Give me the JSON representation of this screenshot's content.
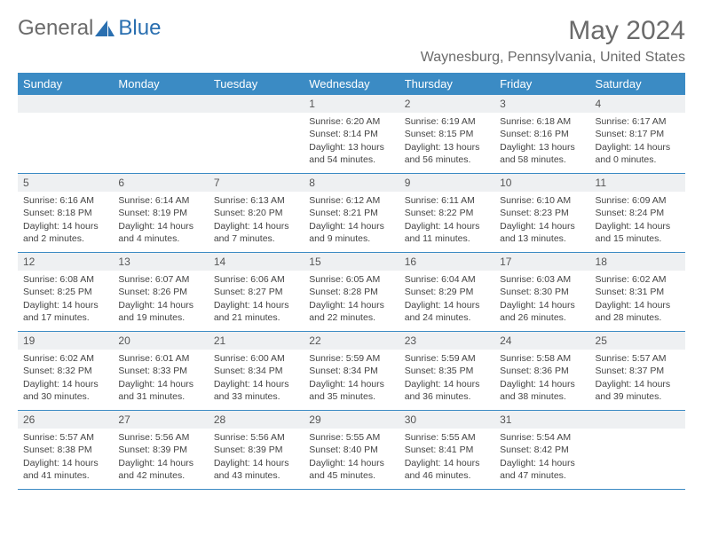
{
  "logo": {
    "text1": "General",
    "text2": "Blue"
  },
  "title": "May 2024",
  "location": "Waynesburg, Pennsylvania, United States",
  "colors": {
    "header_bg": "#3b8bc4",
    "header_text": "#ffffff",
    "cell_bar_bg": "#eef0f2",
    "border": "#3b8bc4",
    "logo_gray": "#6b6b6b",
    "logo_blue": "#2a6fb0"
  },
  "dayNames": [
    "Sunday",
    "Monday",
    "Tuesday",
    "Wednesday",
    "Thursday",
    "Friday",
    "Saturday"
  ],
  "weeks": [
    [
      {
        "n": "",
        "sr": "",
        "ss": "",
        "dl1": "",
        "dl2": ""
      },
      {
        "n": "",
        "sr": "",
        "ss": "",
        "dl1": "",
        "dl2": ""
      },
      {
        "n": "",
        "sr": "",
        "ss": "",
        "dl1": "",
        "dl2": ""
      },
      {
        "n": "1",
        "sr": "Sunrise: 6:20 AM",
        "ss": "Sunset: 8:14 PM",
        "dl1": "Daylight: 13 hours",
        "dl2": "and 54 minutes."
      },
      {
        "n": "2",
        "sr": "Sunrise: 6:19 AM",
        "ss": "Sunset: 8:15 PM",
        "dl1": "Daylight: 13 hours",
        "dl2": "and 56 minutes."
      },
      {
        "n": "3",
        "sr": "Sunrise: 6:18 AM",
        "ss": "Sunset: 8:16 PM",
        "dl1": "Daylight: 13 hours",
        "dl2": "and 58 minutes."
      },
      {
        "n": "4",
        "sr": "Sunrise: 6:17 AM",
        "ss": "Sunset: 8:17 PM",
        "dl1": "Daylight: 14 hours",
        "dl2": "and 0 minutes."
      }
    ],
    [
      {
        "n": "5",
        "sr": "Sunrise: 6:16 AM",
        "ss": "Sunset: 8:18 PM",
        "dl1": "Daylight: 14 hours",
        "dl2": "and 2 minutes."
      },
      {
        "n": "6",
        "sr": "Sunrise: 6:14 AM",
        "ss": "Sunset: 8:19 PM",
        "dl1": "Daylight: 14 hours",
        "dl2": "and 4 minutes."
      },
      {
        "n": "7",
        "sr": "Sunrise: 6:13 AM",
        "ss": "Sunset: 8:20 PM",
        "dl1": "Daylight: 14 hours",
        "dl2": "and 7 minutes."
      },
      {
        "n": "8",
        "sr": "Sunrise: 6:12 AM",
        "ss": "Sunset: 8:21 PM",
        "dl1": "Daylight: 14 hours",
        "dl2": "and 9 minutes."
      },
      {
        "n": "9",
        "sr": "Sunrise: 6:11 AM",
        "ss": "Sunset: 8:22 PM",
        "dl1": "Daylight: 14 hours",
        "dl2": "and 11 minutes."
      },
      {
        "n": "10",
        "sr": "Sunrise: 6:10 AM",
        "ss": "Sunset: 8:23 PM",
        "dl1": "Daylight: 14 hours",
        "dl2": "and 13 minutes."
      },
      {
        "n": "11",
        "sr": "Sunrise: 6:09 AM",
        "ss": "Sunset: 8:24 PM",
        "dl1": "Daylight: 14 hours",
        "dl2": "and 15 minutes."
      }
    ],
    [
      {
        "n": "12",
        "sr": "Sunrise: 6:08 AM",
        "ss": "Sunset: 8:25 PM",
        "dl1": "Daylight: 14 hours",
        "dl2": "and 17 minutes."
      },
      {
        "n": "13",
        "sr": "Sunrise: 6:07 AM",
        "ss": "Sunset: 8:26 PM",
        "dl1": "Daylight: 14 hours",
        "dl2": "and 19 minutes."
      },
      {
        "n": "14",
        "sr": "Sunrise: 6:06 AM",
        "ss": "Sunset: 8:27 PM",
        "dl1": "Daylight: 14 hours",
        "dl2": "and 21 minutes."
      },
      {
        "n": "15",
        "sr": "Sunrise: 6:05 AM",
        "ss": "Sunset: 8:28 PM",
        "dl1": "Daylight: 14 hours",
        "dl2": "and 22 minutes."
      },
      {
        "n": "16",
        "sr": "Sunrise: 6:04 AM",
        "ss": "Sunset: 8:29 PM",
        "dl1": "Daylight: 14 hours",
        "dl2": "and 24 minutes."
      },
      {
        "n": "17",
        "sr": "Sunrise: 6:03 AM",
        "ss": "Sunset: 8:30 PM",
        "dl1": "Daylight: 14 hours",
        "dl2": "and 26 minutes."
      },
      {
        "n": "18",
        "sr": "Sunrise: 6:02 AM",
        "ss": "Sunset: 8:31 PM",
        "dl1": "Daylight: 14 hours",
        "dl2": "and 28 minutes."
      }
    ],
    [
      {
        "n": "19",
        "sr": "Sunrise: 6:02 AM",
        "ss": "Sunset: 8:32 PM",
        "dl1": "Daylight: 14 hours",
        "dl2": "and 30 minutes."
      },
      {
        "n": "20",
        "sr": "Sunrise: 6:01 AM",
        "ss": "Sunset: 8:33 PM",
        "dl1": "Daylight: 14 hours",
        "dl2": "and 31 minutes."
      },
      {
        "n": "21",
        "sr": "Sunrise: 6:00 AM",
        "ss": "Sunset: 8:34 PM",
        "dl1": "Daylight: 14 hours",
        "dl2": "and 33 minutes."
      },
      {
        "n": "22",
        "sr": "Sunrise: 5:59 AM",
        "ss": "Sunset: 8:34 PM",
        "dl1": "Daylight: 14 hours",
        "dl2": "and 35 minutes."
      },
      {
        "n": "23",
        "sr": "Sunrise: 5:59 AM",
        "ss": "Sunset: 8:35 PM",
        "dl1": "Daylight: 14 hours",
        "dl2": "and 36 minutes."
      },
      {
        "n": "24",
        "sr": "Sunrise: 5:58 AM",
        "ss": "Sunset: 8:36 PM",
        "dl1": "Daylight: 14 hours",
        "dl2": "and 38 minutes."
      },
      {
        "n": "25",
        "sr": "Sunrise: 5:57 AM",
        "ss": "Sunset: 8:37 PM",
        "dl1": "Daylight: 14 hours",
        "dl2": "and 39 minutes."
      }
    ],
    [
      {
        "n": "26",
        "sr": "Sunrise: 5:57 AM",
        "ss": "Sunset: 8:38 PM",
        "dl1": "Daylight: 14 hours",
        "dl2": "and 41 minutes."
      },
      {
        "n": "27",
        "sr": "Sunrise: 5:56 AM",
        "ss": "Sunset: 8:39 PM",
        "dl1": "Daylight: 14 hours",
        "dl2": "and 42 minutes."
      },
      {
        "n": "28",
        "sr": "Sunrise: 5:56 AM",
        "ss": "Sunset: 8:39 PM",
        "dl1": "Daylight: 14 hours",
        "dl2": "and 43 minutes."
      },
      {
        "n": "29",
        "sr": "Sunrise: 5:55 AM",
        "ss": "Sunset: 8:40 PM",
        "dl1": "Daylight: 14 hours",
        "dl2": "and 45 minutes."
      },
      {
        "n": "30",
        "sr": "Sunrise: 5:55 AM",
        "ss": "Sunset: 8:41 PM",
        "dl1": "Daylight: 14 hours",
        "dl2": "and 46 minutes."
      },
      {
        "n": "31",
        "sr": "Sunrise: 5:54 AM",
        "ss": "Sunset: 8:42 PM",
        "dl1": "Daylight: 14 hours",
        "dl2": "and 47 minutes."
      },
      {
        "n": "",
        "sr": "",
        "ss": "",
        "dl1": "",
        "dl2": ""
      }
    ]
  ]
}
